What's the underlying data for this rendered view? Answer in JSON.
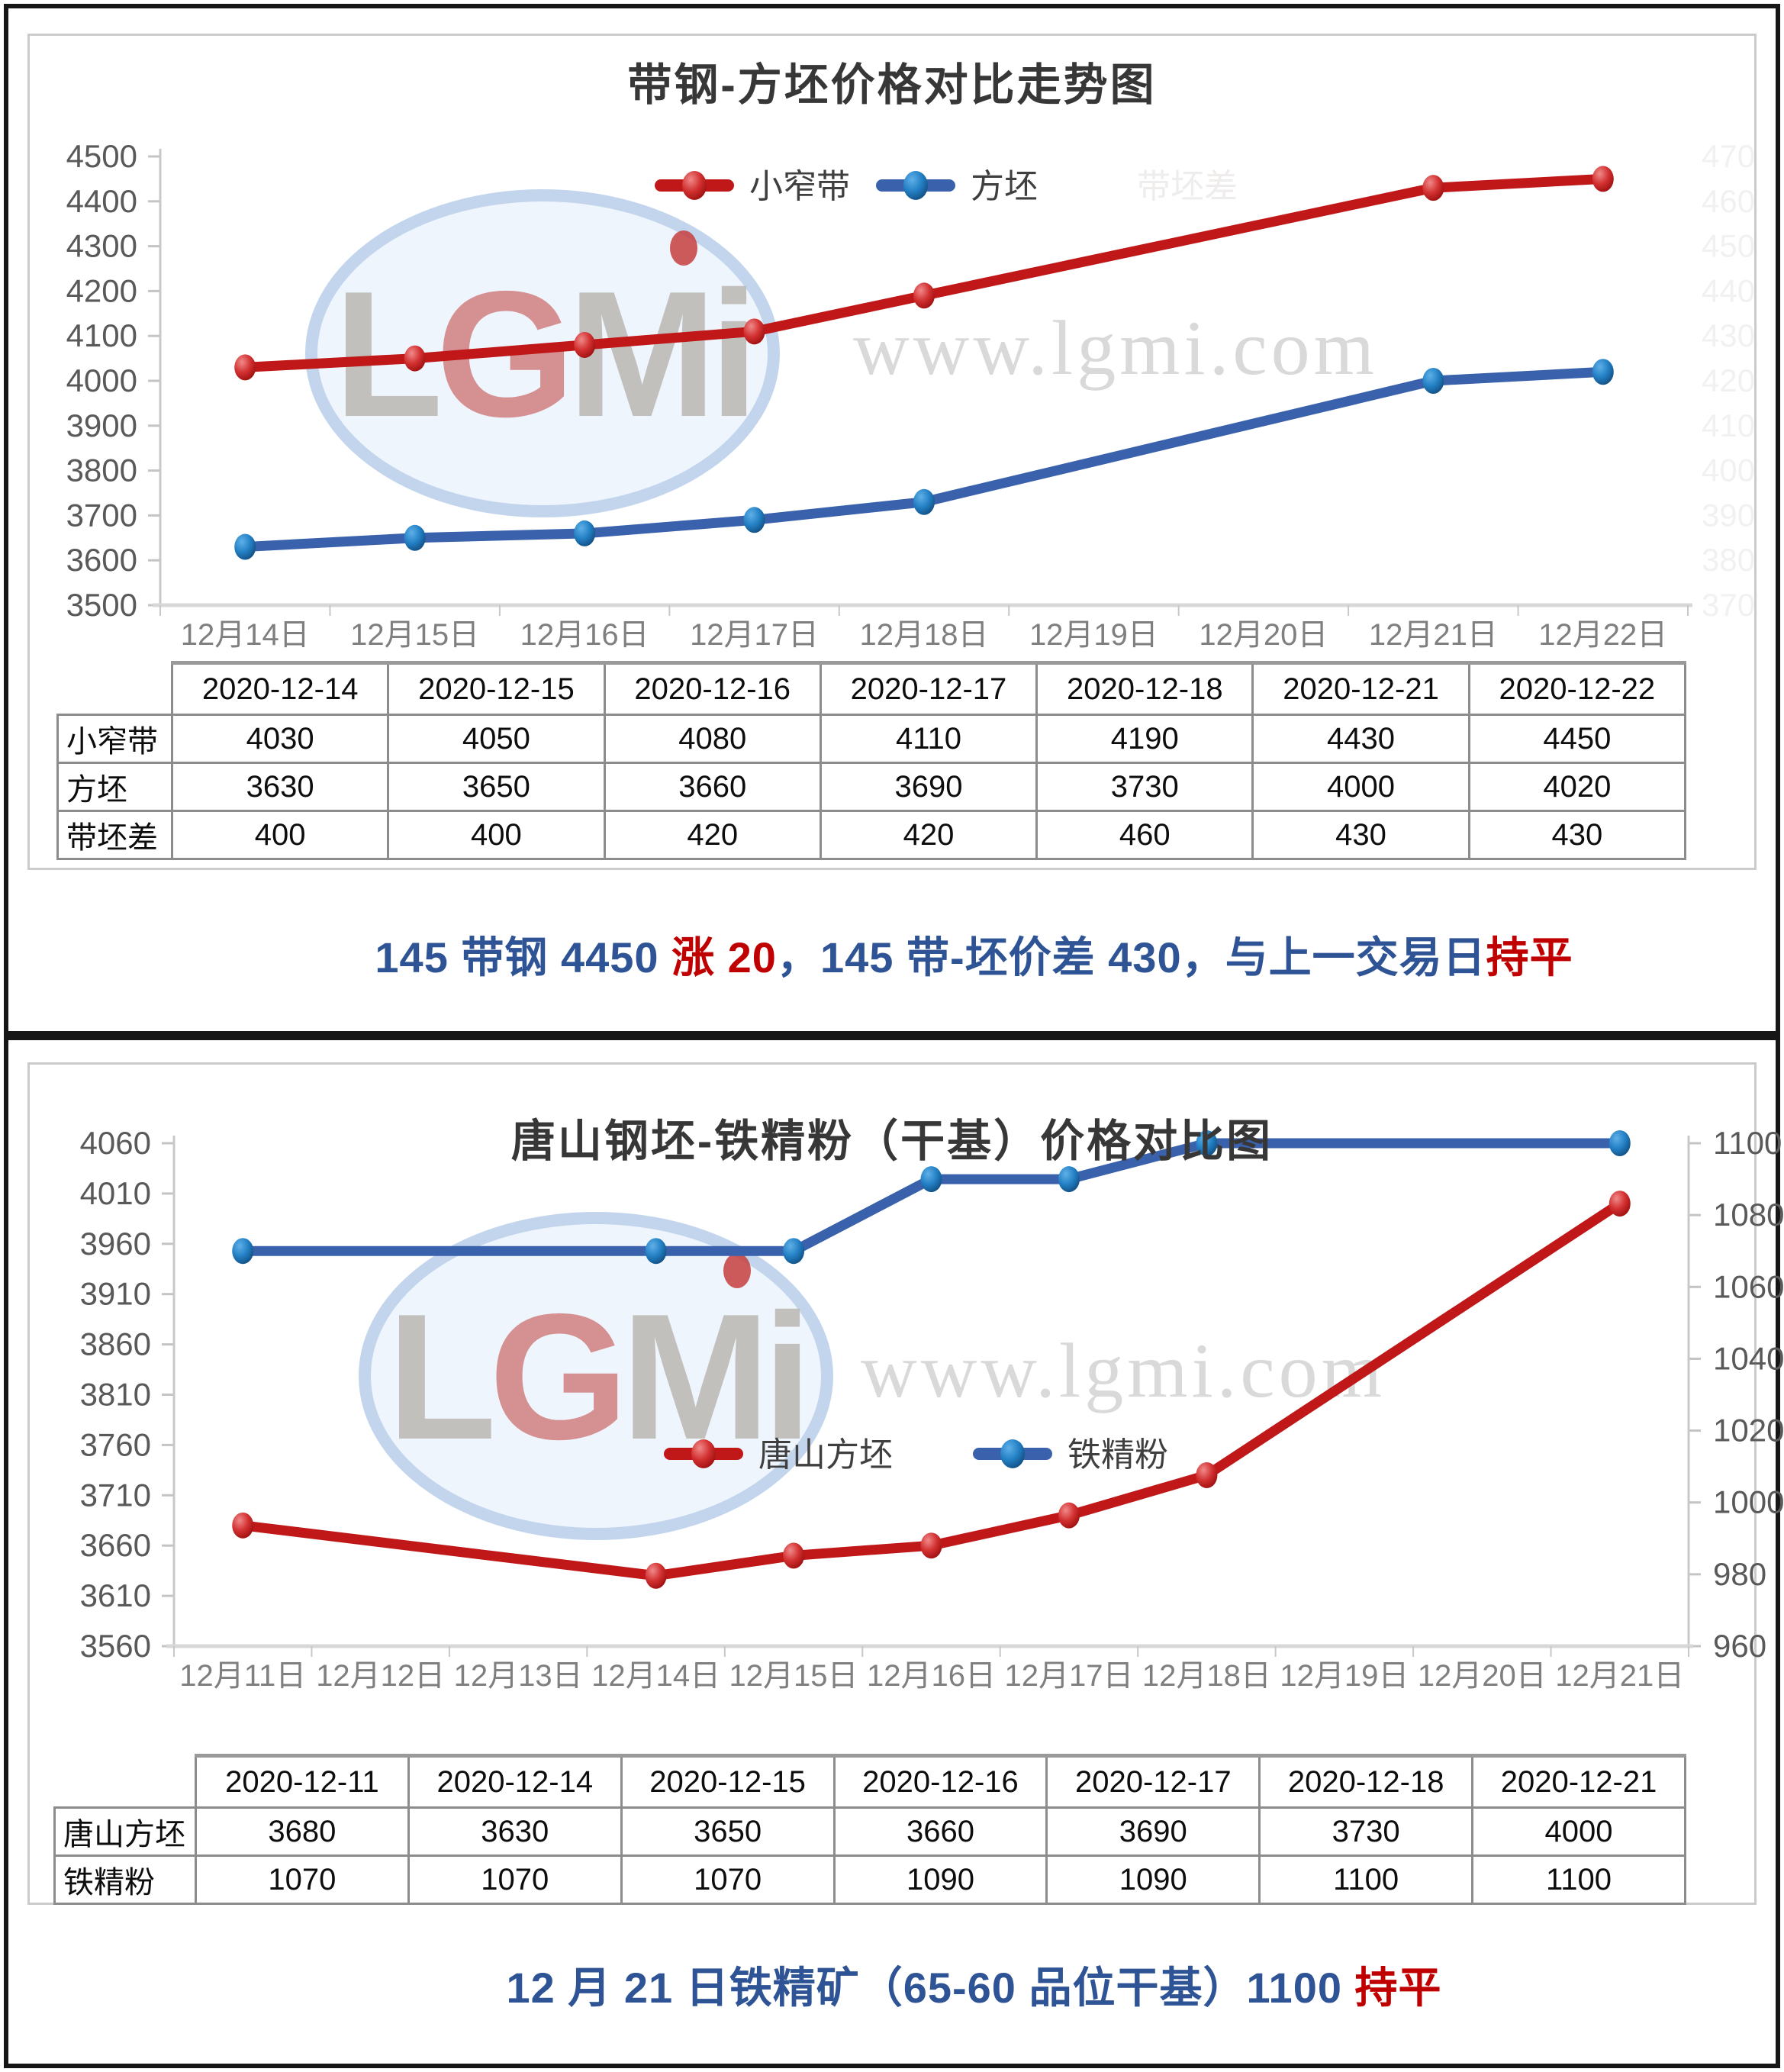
{
  "watermark": {
    "logo_text": "LGMi",
    "site_text": "www.lgmi.com"
  },
  "colors": {
    "red_series": "#C01818",
    "blue_series": "#3A62AC",
    "summary_blue": "#2F5496",
    "summary_red": "#C00000"
  },
  "chart_data": [
    {
      "type": "line",
      "title": "带钢-方坯价格对比走势图",
      "categories": [
        "12月14日",
        "12月15日",
        "12月16日",
        "12月17日",
        "12月18日",
        "12月19日",
        "12月20日",
        "12月21日",
        "12月22日"
      ],
      "y_left": {
        "min": 3500,
        "max": 4500,
        "step": 100
      },
      "y_right_ghost": {
        "min": 370,
        "max": 470,
        "step": 10
      },
      "ghost_legend": "带坯差",
      "legend_position": "top-center-inside",
      "grid": "off",
      "series": [
        {
          "name": "小窄带",
          "color": "#C01818",
          "axis": "left",
          "x_indices": [
            0,
            1,
            2,
            3,
            4,
            7,
            8
          ],
          "values": [
            4030,
            4050,
            4080,
            4110,
            4190,
            4430,
            4450
          ]
        },
        {
          "name": "方坯",
          "color": "#3A62AC",
          "axis": "left",
          "x_indices": [
            0,
            1,
            2,
            3,
            4,
            7,
            8
          ],
          "values": [
            3630,
            3650,
            3660,
            3690,
            3730,
            4000,
            4020
          ]
        }
      ]
    },
    {
      "type": "line",
      "title": "唐山钢坯-铁精粉（干基）价格对比图",
      "categories": [
        "12月11日",
        "12月12日",
        "12月13日",
        "12月14日",
        "12月15日",
        "12月16日",
        "12月17日",
        "12月18日",
        "12月19日",
        "12月20日",
        "12月21日"
      ],
      "y_left": {
        "min": 3560,
        "max": 4060,
        "step": 50
      },
      "y_right": {
        "min": 960,
        "max": 1100,
        "step": 20
      },
      "legend_position": "center-inside",
      "grid": "off",
      "series": [
        {
          "name": "唐山方坯",
          "color": "#C01818",
          "axis": "left",
          "x_indices": [
            0,
            3,
            4,
            5,
            6,
            7,
            10
          ],
          "values": [
            3680,
            3630,
            3650,
            3660,
            3690,
            3730,
            4000
          ]
        },
        {
          "name": "铁精粉",
          "color": "#3A62AC",
          "axis": "right",
          "x_indices": [
            0,
            3,
            4,
            5,
            6,
            7,
            10
          ],
          "values": [
            1070,
            1070,
            1070,
            1090,
            1090,
            1100,
            1100
          ]
        }
      ]
    }
  ],
  "section1": {
    "table": {
      "headers": [
        "2020-12-14",
        "2020-12-15",
        "2020-12-16",
        "2020-12-17",
        "2020-12-18",
        "2020-12-21",
        "2020-12-22"
      ],
      "rows": [
        {
          "label": "小窄带",
          "values": [
            "4030",
            "4050",
            "4080",
            "4110",
            "4190",
            "4430",
            "4450"
          ]
        },
        {
          "label": "方坯",
          "values": [
            "3630",
            "3650",
            "3660",
            "3690",
            "3730",
            "4000",
            "4020"
          ]
        },
        {
          "label": "带坯差",
          "values": [
            "400",
            "400",
            "420",
            "420",
            "460",
            "430",
            "430"
          ]
        }
      ]
    },
    "summary": [
      {
        "text": "145 带钢 4450 ",
        "color": "blue"
      },
      {
        "text": "涨 20",
        "color": "red"
      },
      {
        "text": "，145 带-坯价差 430，与上一交易日",
        "color": "blue"
      },
      {
        "text": "持平",
        "color": "red"
      }
    ]
  },
  "section2": {
    "table": {
      "headers": [
        "2020-12-11",
        "2020-12-14",
        "2020-12-15",
        "2020-12-16",
        "2020-12-17",
        "2020-12-18",
        "2020-12-21"
      ],
      "rows": [
        {
          "label": "唐山方坯",
          "values": [
            "3680",
            "3630",
            "3650",
            "3660",
            "3690",
            "3730",
            "4000"
          ]
        },
        {
          "label": "铁精粉",
          "values": [
            "1070",
            "1070",
            "1070",
            "1090",
            "1090",
            "1100",
            "1100"
          ]
        }
      ]
    },
    "summary": [
      {
        "text": "12 月 21 日铁精矿（65-60 品位干基）1100 ",
        "color": "blue"
      },
      {
        "text": "持平",
        "color": "red"
      }
    ]
  }
}
